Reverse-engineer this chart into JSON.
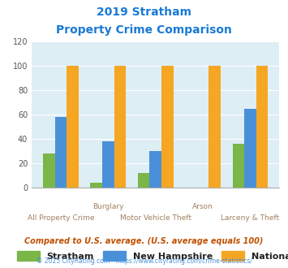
{
  "title_line1": "2019 Stratham",
  "title_line2": "Property Crime Comparison",
  "groups": [
    "All Property Crime",
    "Burglary",
    "Motor Vehicle Theft",
    "Arson",
    "Larceny & Theft"
  ],
  "stratham": [
    28,
    4,
    12,
    0,
    36
  ],
  "new_hampshire": [
    58,
    38,
    30,
    0,
    65
  ],
  "national": [
    100,
    100,
    100,
    100,
    100
  ],
  "bar_colors_stratham": "#7ab648",
  "bar_colors_new_hampshire": "#4a90d9",
  "bar_colors_national": "#f5a623",
  "ylim": [
    0,
    120
  ],
  "yticks": [
    0,
    20,
    40,
    60,
    80,
    100,
    120
  ],
  "legend_labels": [
    "Stratham",
    "New Hampshire",
    "National"
  ],
  "footnote1": "Compared to U.S. average. (U.S. average equals 100)",
  "footnote2": "© 2025 CityRating.com - https://www.cityrating.com/crime-statistics/",
  "title_color": "#1a7ad4",
  "footnote1_color": "#c05000",
  "footnote2_color": "#4a90d9",
  "label_color": "#a08060",
  "fig_bg": "#ffffff",
  "plot_bg": "#ddeef5",
  "grid_color": "#ffffff"
}
